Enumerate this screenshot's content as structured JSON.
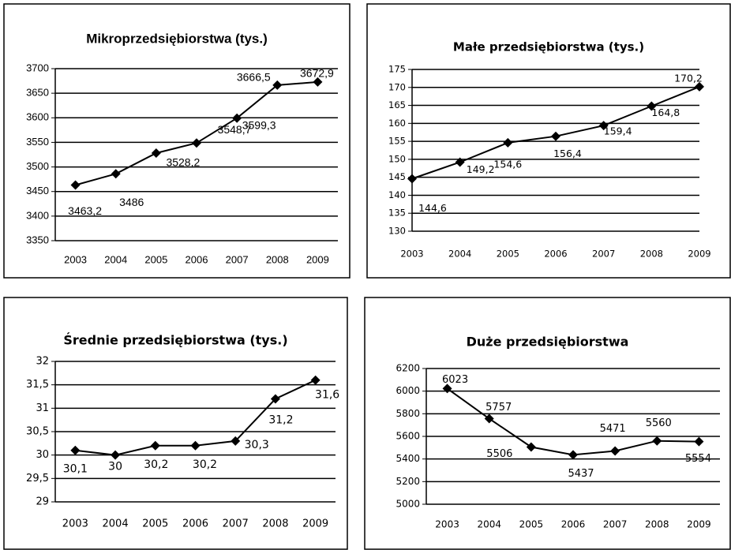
{
  "chart_data": [
    {
      "type": "line",
      "title": "Mikroprzedsiębiorstwa (tys.)",
      "categories": [
        "2003",
        "2004",
        "2005",
        "2006",
        "2007",
        "2008",
        "2009"
      ],
      "values": [
        3463.2,
        3486,
        3528.2,
        3548.7,
        3599.3,
        3666.5,
        3672.9
      ],
      "value_labels": [
        "3463,2",
        "3486",
        "3528,2",
        "3548,7",
        "3599,3",
        "3666,5",
        "3672,9"
      ],
      "color": "#000000",
      "ylim": [
        3350,
        3700
      ],
      "yticks": [
        3350,
        3400,
        3450,
        3500,
        3550,
        3600,
        3650,
        3700
      ],
      "grid": true
    },
    {
      "type": "line",
      "title": "Małe przedsiębiorstwa (tys.)",
      "categories": [
        "2003",
        "2004",
        "2005",
        "2006",
        "2007",
        "2008",
        "2009"
      ],
      "values": [
        144.6,
        149.2,
        154.6,
        156.4,
        159.4,
        164.8,
        170.2
      ],
      "value_labels": [
        "144,6",
        "149,2",
        "154,6",
        "156,4",
        "159,4",
        "164,8",
        "170,2"
      ],
      "color": "#000000",
      "ylim": [
        130,
        175
      ],
      "yticks": [
        130,
        135,
        140,
        145,
        150,
        155,
        160,
        165,
        170,
        175
      ],
      "grid": true
    },
    {
      "type": "line",
      "title": "Średnie przedsiębiorstwa (tys.)",
      "categories": [
        "2003",
        "2004",
        "2005",
        "2006",
        "2007",
        "2008",
        "2009"
      ],
      "values": [
        30.1,
        30,
        30.2,
        30.2,
        30.3,
        31.2,
        31.6
      ],
      "value_labels": [
        "30,1",
        "30",
        "30,2",
        "30,2",
        "30,3",
        "31,2",
        "31,6"
      ],
      "color": "#000000",
      "ylim": [
        29,
        32
      ],
      "yticks": [
        29,
        {
          "value": 29.5,
          "label": "29,5"
        },
        30,
        {
          "value": 30.5,
          "label": "30,5"
        },
        31,
        {
          "value": 31.5,
          "label": "31,5"
        },
        32
      ],
      "grid": true
    },
    {
      "type": "line",
      "title": "Duże przedsiębiorstwa",
      "categories": [
        "2003",
        "2004",
        "2005",
        "2006",
        "2007",
        "2008",
        "2009"
      ],
      "values": [
        6023,
        5757,
        5506,
        5437,
        5471,
        5560,
        5554
      ],
      "color": "#000000",
      "ylim": [
        5000,
        6200
      ],
      "yticks": [
        5000,
        5200,
        5400,
        5600,
        5800,
        6000,
        6200
      ],
      "grid": true
    }
  ]
}
